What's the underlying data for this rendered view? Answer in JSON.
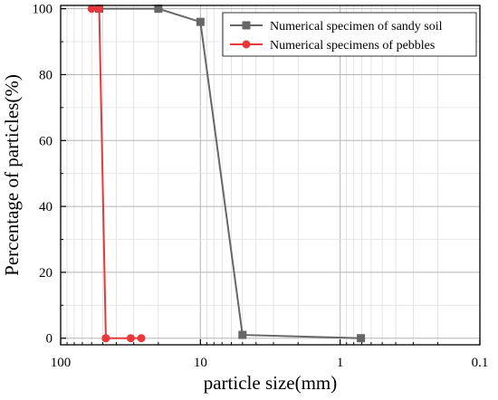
{
  "chart_data": {
    "type": "line",
    "title": "",
    "xlabel": "particle size(mm)",
    "ylabel": "Percentage of particles(%)",
    "x_scale": "log",
    "x_reversed": true,
    "xlim": [
      100,
      0.1
    ],
    "ylim": [
      -2,
      101
    ],
    "x_ticks": [
      100,
      10,
      1,
      0.1
    ],
    "x_tick_labels": [
      "100",
      "10",
      "1",
      "0.1"
    ],
    "y_ticks": [
      0,
      20,
      40,
      60,
      80,
      100
    ],
    "y_tick_labels": [
      "0",
      "20",
      "40",
      "60",
      "80",
      "100"
    ],
    "grid": true,
    "legend_position": "top-right",
    "series": [
      {
        "name": "Numerical specimen of sandy soil",
        "color": "#666666",
        "marker": "square",
        "x": [
          53,
          20,
          10,
          5,
          0.71
        ],
        "y": [
          100,
          100,
          96,
          1,
          0
        ]
      },
      {
        "name": "Numerical specimens of pebbles",
        "color": "#e8383b",
        "marker": "circle",
        "x": [
          60,
          53,
          47.5,
          31.5,
          26.5,
          47.5
        ],
        "y": [
          100,
          100,
          0,
          0,
          0,
          0
        ]
      }
    ]
  }
}
